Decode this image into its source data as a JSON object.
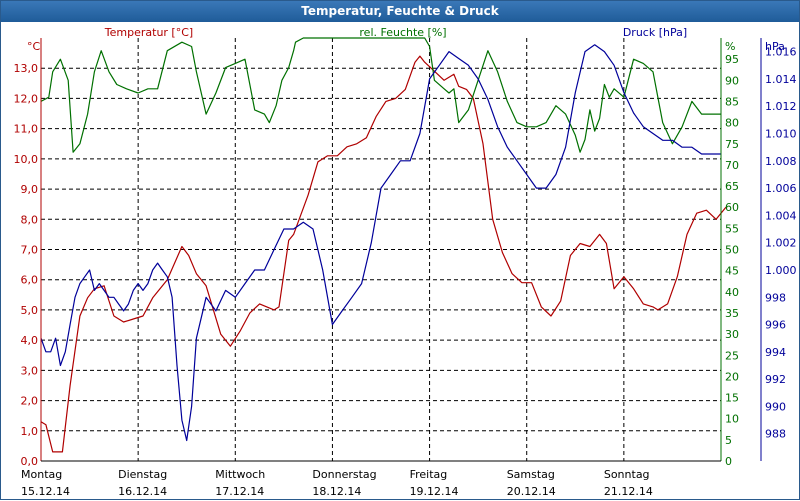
{
  "window": {
    "title": "Temperatur, Feuchte & Druck"
  },
  "colors": {
    "temperature": "#b00000",
    "humidity": "#007000",
    "pressure": "#00009a",
    "titlebar": "#1f5c99",
    "grid": "#000000"
  },
  "chart_data": {
    "type": "line",
    "title": "Temperatur, Feuchte & Druck",
    "x_ticks": [
      {
        "day": "Montag",
        "date": "15.12.14"
      },
      {
        "day": "Dienstag",
        "date": "16.12.14"
      },
      {
        "day": "Mittwoch",
        "date": "17.12.14"
      },
      {
        "day": "Donnerstag",
        "date": "18.12.14"
      },
      {
        "day": "Freitag",
        "date": "19.12.14"
      },
      {
        "day": "Samstag",
        "date": "20.12.14"
      },
      {
        "day": "Sonntag",
        "date": "21.12.14"
      }
    ],
    "axes": {
      "left": {
        "label": "°C",
        "series_label": "Temperatur [°C]",
        "min": 0,
        "max": 14,
        "ticks": [
          "0,0",
          "1,0",
          "2,0",
          "3,0",
          "4,0",
          "5,0",
          "6,0",
          "7,0",
          "8,0",
          "9,0",
          "10,0",
          "11,0",
          "12,0",
          "13,0"
        ]
      },
      "mid": {
        "label": "%",
        "series_label": "rel. Feuchte [%]",
        "min": 0,
        "max": 100,
        "ticks": [
          "0",
          "5",
          "10",
          "15",
          "20",
          "25",
          "30",
          "35",
          "40",
          "45",
          "50",
          "55",
          "60",
          "65",
          "70",
          "75",
          "80",
          "85",
          "90",
          "95"
        ]
      },
      "right": {
        "label": "hPa",
        "series_label": "Druck [hPa]",
        "min": 986,
        "max": 1017,
        "ticks": [
          "988",
          "990",
          "992",
          "994",
          "996",
          "998",
          "1.000",
          "1.002",
          "1.004",
          "1.006",
          "1.008",
          "1.010",
          "1.012",
          "1.014",
          "1.016"
        ]
      }
    },
    "grid": true,
    "series": [
      {
        "name": "Temperatur [°C]",
        "axis": "left",
        "x": [
          0,
          0.05,
          0.12,
          0.22,
          0.3,
          0.4,
          0.48,
          0.55,
          0.65,
          0.75,
          0.85,
          0.95,
          1.05,
          1.15,
          1.3,
          1.45,
          1.52,
          1.6,
          1.7,
          1.85,
          1.95,
          2.05,
          2.15,
          2.25,
          2.4,
          2.45,
          2.55,
          2.6,
          2.75,
          2.85,
          2.95,
          3.05,
          3.15,
          3.25,
          3.35,
          3.45,
          3.55,
          3.65,
          3.75,
          3.85,
          3.9,
          3.95,
          4.05,
          4.15,
          4.25,
          4.3,
          4.38,
          4.45,
          4.55,
          4.65,
          4.75,
          4.85,
          4.95,
          5.05,
          5.15,
          5.25,
          5.35,
          5.45,
          5.55,
          5.65,
          5.75,
          5.82,
          5.9,
          6.0,
          6.1,
          6.2,
          6.3,
          6.35,
          6.45,
          6.55,
          6.65,
          6.75,
          6.85,
          6.95,
          7.05
        ],
        "y": [
          1.3,
          1.2,
          0.3,
          0.3,
          2.5,
          4.8,
          5.4,
          5.7,
          5.8,
          4.8,
          4.6,
          4.7,
          4.8,
          5.4,
          6.0,
          7.1,
          6.8,
          6.2,
          5.8,
          4.2,
          3.8,
          4.3,
          4.9,
          5.2,
          5.0,
          5.1,
          7.3,
          7.5,
          8.8,
          9.9,
          10.1,
          10.1,
          10.4,
          10.5,
          10.7,
          11.4,
          11.9,
          12.0,
          12.3,
          13.2,
          13.4,
          13.2,
          12.9,
          12.6,
          12.8,
          12.4,
          12.3,
          12.0,
          10.5,
          8.0,
          6.9,
          6.2,
          5.9,
          5.9,
          5.1,
          4.8,
          5.3,
          6.8,
          7.2,
          7.1,
          7.5,
          7.2,
          5.7,
          6.1,
          5.7,
          5.2,
          5.1,
          5.0,
          5.2,
          6.1,
          7.5,
          8.2,
          8.3,
          8.0,
          8.4
        ]
      },
      {
        "name": "rel. Feuchte [%]",
        "axis": "mid",
        "x": [
          0,
          0.08,
          0.12,
          0.2,
          0.28,
          0.33,
          0.4,
          0.48,
          0.55,
          0.62,
          0.7,
          0.78,
          0.88,
          1.0,
          1.1,
          1.2,
          1.3,
          1.45,
          1.55,
          1.6,
          1.7,
          1.8,
          1.9,
          2.0,
          2.1,
          2.2,
          2.3,
          2.35,
          2.42,
          2.48,
          2.55,
          2.6,
          2.62,
          2.7,
          2.75,
          2.85,
          2.9,
          3.0,
          3.1,
          3.2,
          3.3,
          3.4,
          3.5,
          3.6,
          3.7,
          3.8,
          3.9,
          3.95,
          4.0,
          4.05,
          4.15,
          4.2,
          4.25,
          4.3,
          4.4,
          4.5,
          4.6,
          4.7,
          4.8,
          4.9,
          5.0,
          5.1,
          5.2,
          5.3,
          5.4,
          5.5,
          5.55,
          5.6,
          5.65,
          5.7,
          5.75,
          5.8,
          5.85,
          5.9,
          6.0,
          6.1,
          6.2,
          6.3,
          6.4,
          6.5,
          6.6,
          6.7,
          6.8,
          7.0
        ],
        "y": [
          85,
          86,
          92,
          95,
          90,
          73,
          75,
          82,
          92,
          97,
          92,
          89,
          88,
          87,
          88,
          88,
          97,
          99,
          98,
          92,
          82,
          87,
          93,
          94,
          95,
          83,
          82,
          80,
          84,
          90,
          93,
          97,
          99,
          100,
          100,
          100,
          100,
          100,
          100,
          100,
          100,
          100,
          100,
          100,
          100,
          100,
          100,
          100,
          98,
          90,
          88,
          87,
          88,
          80,
          83,
          90,
          97,
          92,
          85,
          80,
          79,
          79,
          80,
          84,
          82,
          77,
          73,
          76,
          83,
          78,
          81,
          89,
          86,
          88,
          86,
          95,
          94,
          92,
          80,
          75,
          79,
          85,
          82,
          82
        ]
      },
      {
        "name": "Druck [hPa]",
        "axis": "right",
        "x": [
          0,
          0.05,
          0.1,
          0.15,
          0.2,
          0.25,
          0.3,
          0.35,
          0.4,
          0.45,
          0.5,
          0.55,
          0.6,
          0.65,
          0.7,
          0.75,
          0.8,
          0.85,
          0.9,
          0.95,
          1.0,
          1.05,
          1.1,
          1.15,
          1.2,
          1.25,
          1.3,
          1.35,
          1.4,
          1.45,
          1.5,
          1.55,
          1.6,
          1.7,
          1.8,
          1.9,
          2.0,
          2.1,
          2.2,
          2.3,
          2.4,
          2.5,
          2.6,
          2.7,
          2.8,
          2.9,
          3.0,
          3.1,
          3.2,
          3.3,
          3.4,
          3.5,
          3.6,
          3.7,
          3.8,
          3.9,
          4.0,
          4.1,
          4.2,
          4.3,
          4.4,
          4.5,
          4.6,
          4.7,
          4.8,
          4.9,
          5.0,
          5.1,
          5.2,
          5.3,
          5.4,
          5.5,
          5.6,
          5.7,
          5.8,
          5.9,
          6.0,
          6.1,
          6.2,
          6.3,
          6.4,
          6.5,
          6.6,
          6.7,
          6.8,
          6.9,
          7.0
        ],
        "y": [
          995,
          994,
          994,
          995,
          993,
          994,
          996,
          998,
          999,
          999.5,
          1000,
          998.5,
          999,
          998.5,
          998,
          998,
          997.5,
          997,
          997.5,
          998.5,
          999,
          998.5,
          999,
          1000,
          1000.5,
          1000,
          999.5,
          998,
          993,
          989,
          987.5,
          990,
          995,
          998,
          997,
          998.5,
          998,
          999,
          1000,
          1000,
          1001.5,
          1003,
          1003,
          1003.5,
          1003,
          1000,
          996,
          997,
          998,
          999,
          1002,
          1006,
          1007,
          1008,
          1008,
          1010,
          1014,
          1015,
          1016,
          1015.5,
          1015,
          1014,
          1012.5,
          1010.5,
          1009,
          1008,
          1007,
          1006,
          1006,
          1007,
          1009,
          1013,
          1016,
          1016.5,
          1016,
          1015,
          1013,
          1011.5,
          1010.5,
          1010,
          1009.5,
          1009.5,
          1009,
          1009,
          1008.5,
          1008.5,
          1008.5
        ]
      }
    ]
  }
}
